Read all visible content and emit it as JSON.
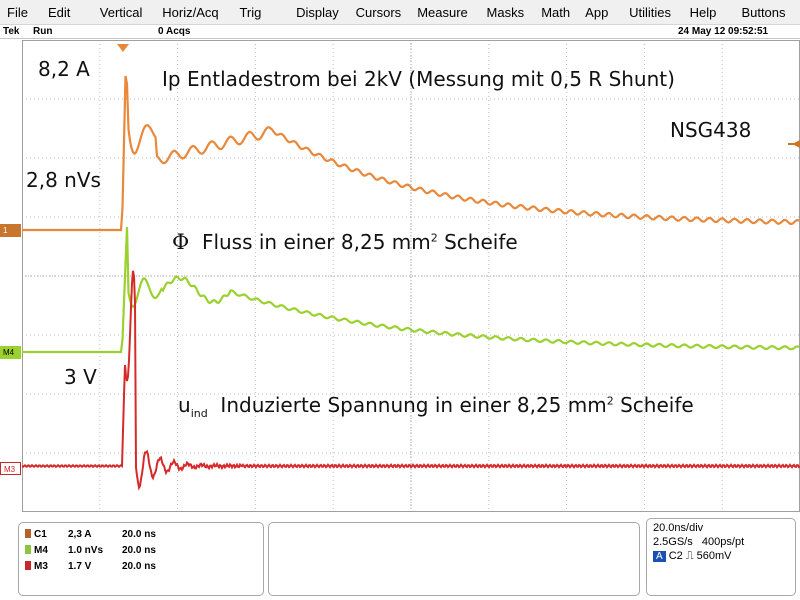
{
  "menu": [
    "File",
    "Edit",
    "Vertical",
    "Horiz/Acq",
    "Trig",
    "Display",
    "Cursors",
    "Measure",
    "Masks",
    "Math",
    "App",
    "Utilities",
    "Help",
    "Buttons"
  ],
  "status": {
    "brand": "Tek",
    "mode": "Run",
    "acqs": "0 Acqs",
    "datetime": "24 May 12 09:52:51"
  },
  "annotations": {
    "peak_current": "8,2 A",
    "peak_flux": "2,8 nVs",
    "peak_voltage": "3 V",
    "title_current": "Ip  Entladestrom  bei 2kV (Messung mit 0,5 R Shunt)",
    "device": "NSG438",
    "flux_symbol": "Φ",
    "flux_text_a": "Fluss in einer 8,25 mm",
    "flux_text_sup": "2",
    "flux_text_b": " Scheife",
    "u_symbol": "u",
    "u_subscript": "ind",
    "u_text_a": "Induzierte Spannung in einer 8,25 mm",
    "u_text_sup": "2",
    "u_text_b": " Scheife"
  },
  "markers": {
    "ch1": "1",
    "m4": "M4",
    "m3": "M3"
  },
  "channels": [
    {
      "name": "C1",
      "scale": "2,3 A",
      "time": "20.0 ns",
      "color": "#b8602c"
    },
    {
      "name": "M4",
      "scale": "1.0 nVs",
      "time": "20.0 ns",
      "color": "#8cc63e"
    },
    {
      "name": "M3",
      "scale": "1.7 V",
      "time": "20.0 ns",
      "color": "#c8282a"
    }
  ],
  "timebase": {
    "div": "20.0ns/div",
    "rate": "2.5GS/s",
    "res": "400ps/pt",
    "trig_ch": "C2",
    "trig_level": "560mV",
    "trig_badge": "A"
  },
  "colors": {
    "orange": "#e8883a",
    "green": "#9ad12e",
    "red": "#d62a2a",
    "grid": "#b0b0b0"
  }
}
